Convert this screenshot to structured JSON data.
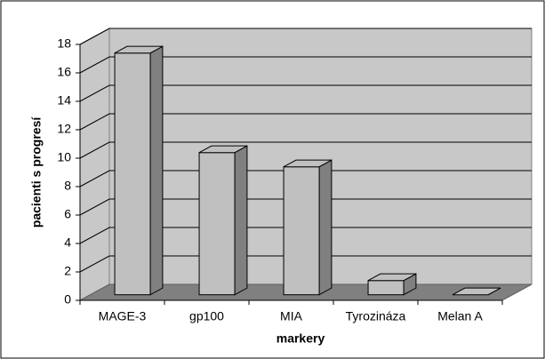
{
  "chart_data": {
    "type": "bar3d",
    "xlabel": "markery",
    "ylabel": "pacienti s progresí",
    "categories": [
      "MAGE-3",
      "gp100",
      "MIA",
      "Tyrozináza",
      "Melan A"
    ],
    "values": [
      17,
      10,
      9,
      1,
      0
    ],
    "color": "#c0c0c0",
    "ylim": [
      0,
      18
    ],
    "yticks": [
      0,
      2,
      4,
      6,
      8,
      10,
      12,
      14,
      16,
      18
    ],
    "grid": true
  }
}
